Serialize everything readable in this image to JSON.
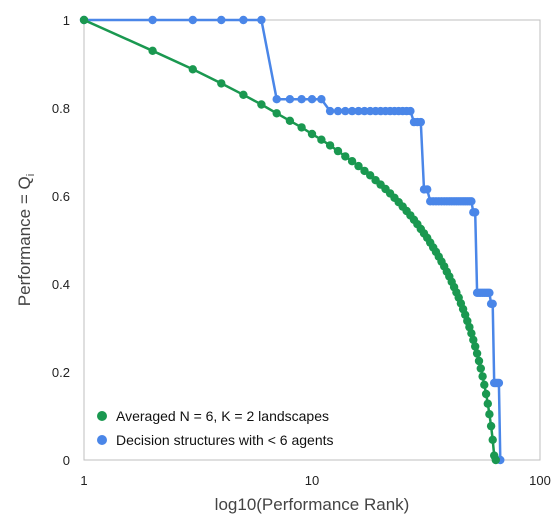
{
  "chart_data": {
    "type": "line",
    "title": "",
    "xlabel": "log10(Performance Rank)",
    "ylabel": "Performance = Q",
    "ylabel_subscript": "i",
    "x_scale": "log",
    "xlim": [
      1,
      100
    ],
    "ylim": [
      0,
      1
    ],
    "x_ticks": [
      1,
      10,
      100
    ],
    "x_tick_labels": [
      "1",
      "10",
      "100"
    ],
    "y_ticks": [
      0,
      0.2,
      0.4,
      0.6,
      0.8,
      1
    ],
    "y_tick_labels": [
      "0",
      "0.2",
      "0.4",
      "0.6",
      "0.8",
      "1"
    ],
    "grid": false,
    "legend_position": "bottom-left",
    "series": [
      {
        "name": "Averaged N = 6, K = 2 landscapes",
        "color": "#1a9850",
        "x": [
          1,
          2,
          3,
          4,
          5,
          6,
          7,
          8,
          9,
          10,
          11,
          12,
          13,
          14,
          15,
          16,
          17,
          18,
          19,
          20,
          21,
          22,
          23,
          24,
          25,
          26,
          27,
          28,
          29,
          30,
          31,
          32,
          33,
          34,
          35,
          36,
          37,
          38,
          39,
          40,
          41,
          42,
          43,
          44,
          45,
          46,
          47,
          48,
          49,
          50,
          51,
          52,
          53,
          54,
          55,
          56,
          57,
          58,
          59,
          60,
          61,
          62,
          63,
          64
        ],
        "y": [
          1.0,
          0.93,
          0.888,
          0.856,
          0.83,
          0.808,
          0.788,
          0.771,
          0.756,
          0.741,
          0.728,
          0.715,
          0.702,
          0.69,
          0.679,
          0.668,
          0.657,
          0.647,
          0.636,
          0.626,
          0.616,
          0.606,
          0.596,
          0.586,
          0.576,
          0.566,
          0.556,
          0.546,
          0.536,
          0.525,
          0.515,
          0.505,
          0.494,
          0.483,
          0.473,
          0.462,
          0.451,
          0.44,
          0.428,
          0.417,
          0.405,
          0.393,
          0.381,
          0.369,
          0.356,
          0.343,
          0.33,
          0.316,
          0.302,
          0.288,
          0.273,
          0.258,
          0.242,
          0.225,
          0.208,
          0.19,
          0.171,
          0.15,
          0.128,
          0.104,
          0.077,
          0.046,
          0.01,
          0.0
        ]
      },
      {
        "name": "Decision structures with < 6 agents",
        "color": "#4a86e8",
        "x": [
          1,
          2,
          3,
          4,
          5,
          6,
          7,
          8,
          9,
          10,
          11,
          12,
          13,
          14,
          15,
          16,
          17,
          18,
          19,
          20,
          21,
          22,
          23,
          24,
          25,
          26,
          27,
          28,
          29,
          30,
          31,
          32,
          33,
          34,
          35,
          36,
          37,
          38,
          39,
          40,
          41,
          42,
          43,
          44,
          45,
          46,
          47,
          48,
          49,
          50,
          51,
          52,
          53,
          54,
          55,
          56,
          57,
          58,
          59,
          60,
          61,
          62,
          63,
          64,
          65,
          66,
          67
        ],
        "y": [
          1.0,
          1.0,
          1.0,
          1.0,
          1.0,
          1.0,
          0.82,
          0.82,
          0.82,
          0.82,
          0.82,
          0.793,
          0.793,
          0.793,
          0.793,
          0.793,
          0.793,
          0.793,
          0.793,
          0.793,
          0.793,
          0.793,
          0.793,
          0.793,
          0.793,
          0.793,
          0.793,
          0.768,
          0.768,
          0.768,
          0.615,
          0.615,
          0.588,
          0.588,
          0.588,
          0.588,
          0.588,
          0.588,
          0.588,
          0.588,
          0.588,
          0.588,
          0.588,
          0.588,
          0.588,
          0.588,
          0.588,
          0.588,
          0.588,
          0.588,
          0.563,
          0.563,
          0.38,
          0.38,
          0.38,
          0.38,
          0.38,
          0.38,
          0.38,
          0.38,
          0.355,
          0.355,
          0.175,
          0.175,
          0.175,
          0.175,
          0.0
        ]
      }
    ]
  }
}
